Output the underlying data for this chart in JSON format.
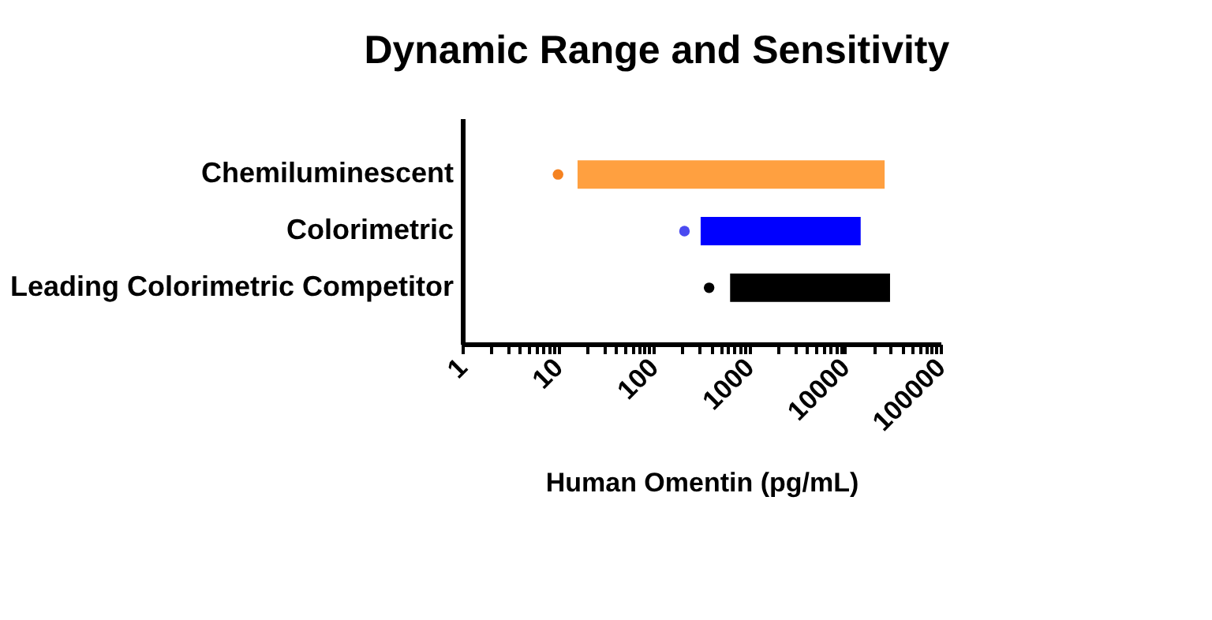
{
  "chart_data": {
    "type": "bar",
    "orientation": "horizontal",
    "title": "Dynamic Range and Sensitivity",
    "xlabel": "Human Omentin (pg/mL)",
    "categories": [
      "Chemiluminescent",
      "Colorimetric",
      "Leading Colorimetric Competitor"
    ],
    "log": "x",
    "xlim": [
      1,
      100000
    ],
    "xticks": [
      1,
      {
        "value": 2,
        "label": null
      },
      {
        "value": 3,
        "label": null
      },
      {
        "value": 4,
        "label": null
      },
      {
        "value": 5,
        "label": null
      },
      {
        "value": 6,
        "label": null
      },
      {
        "value": 7,
        "label": null
      },
      {
        "value": 8,
        "label": null
      },
      {
        "value": 9,
        "label": null
      },
      10,
      {
        "value": 20,
        "label": null
      },
      {
        "value": 30,
        "label": null
      },
      {
        "value": 40,
        "label": null
      },
      {
        "value": 50,
        "label": null
      },
      {
        "value": 60,
        "label": null
      },
      {
        "value": 70,
        "label": null
      },
      {
        "value": 80,
        "label": null
      },
      {
        "value": 90,
        "label": null
      },
      100,
      {
        "value": 200,
        "label": null
      },
      {
        "value": 300,
        "label": null
      },
      {
        "value": 400,
        "label": null
      },
      {
        "value": 500,
        "label": null
      },
      {
        "value": 600,
        "label": null
      },
      {
        "value": 700,
        "label": null
      },
      {
        "value": 800,
        "label": null
      },
      {
        "value": 900,
        "label": null
      },
      1000,
      {
        "value": 2000,
        "label": null
      },
      {
        "value": 3000,
        "label": null
      },
      {
        "value": 4000,
        "label": null
      },
      {
        "value": 5000,
        "label": null
      },
      {
        "value": 6000,
        "label": null
      },
      {
        "value": 7000,
        "label": null
      },
      {
        "value": 8000,
        "label": null
      },
      {
        "value": 9000,
        "label": null
      },
      10000,
      {
        "value": 20000,
        "label": null
      },
      {
        "value": 30000,
        "label": null
      },
      {
        "value": 40000,
        "label": null
      },
      {
        "value": 50000,
        "label": null
      },
      {
        "value": 60000,
        "label": null
      },
      {
        "value": 70000,
        "label": null
      },
      {
        "value": 80000,
        "label": null
      },
      {
        "value": 90000,
        "label": null
      },
      100000
    ],
    "series": [
      {
        "base": [
          16,
          310,
          630
        ],
        "values": [
          26000,
          14300,
          29000
        ],
        "colors": [
          "#ffa040",
          "#0000ff",
          "#000000"
        ]
      },
      {
        "type": "scatter",
        "x": [
          "Chemiluminescent",
          "Colorimetric",
          "Leading Colorimetric Competitor"
        ],
        "values": [
          10,
          210,
          380
        ],
        "colors": [
          "#f58220",
          "#4a4af0",
          "#000000"
        ],
        "marker": "circle"
      }
    ],
    "legend": false,
    "grid": false
  }
}
